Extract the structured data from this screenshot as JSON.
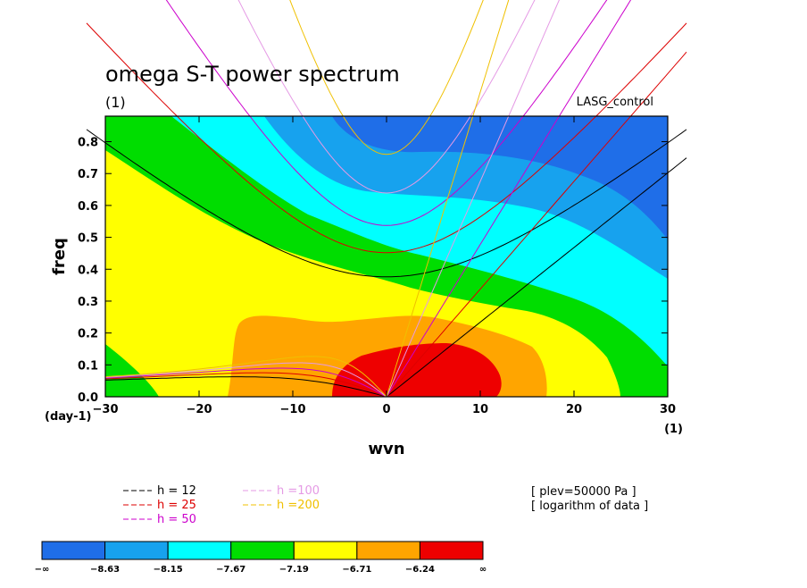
{
  "chart_data": {
    "type": "heatmap",
    "title": "omega S-T power spectrum",
    "title_unit": "(1)",
    "experiment": "LASG_control",
    "xlabel": "wvn",
    "ylabel": "freq",
    "x_unit": "(1)",
    "y_unit": "(day-1)",
    "xlim": [
      -30,
      30
    ],
    "ylim": [
      0,
      0.88
    ],
    "x_ticks": [
      "−30",
      "−20",
      "−10",
      "0",
      "10",
      "20",
      "30"
    ],
    "y_ticks": [
      "0.0",
      "0.1",
      "0.2",
      "0.3",
      "0.4",
      "0.5",
      "0.6",
      "0.7",
      "0.8"
    ],
    "contour_levels": [
      "−∞",
      "−8.63",
      "−8.15",
      "−7.67",
      "−7.19",
      "−6.71",
      "−6.24",
      "∞"
    ],
    "colors": [
      "#1f6ee8",
      "#17a2ee",
      "#00ffff",
      "#00dd00",
      "#ffff00",
      "#ffa500",
      "#ee0000"
    ],
    "dispersion_curves": [
      {
        "label": "h = 12",
        "color": "#000000"
      },
      {
        "label": "h = 25",
        "color": "#dd0000"
      },
      {
        "label": "h = 50",
        "color": "#cc00cc"
      },
      {
        "label": "h =100",
        "color": "#e59ae5"
      },
      {
        "label": "h =200",
        "color": "#f0c000"
      }
    ],
    "notes": [
      "[ plev=50000 Pa ]",
      "[ logarithm of data ]"
    ]
  }
}
